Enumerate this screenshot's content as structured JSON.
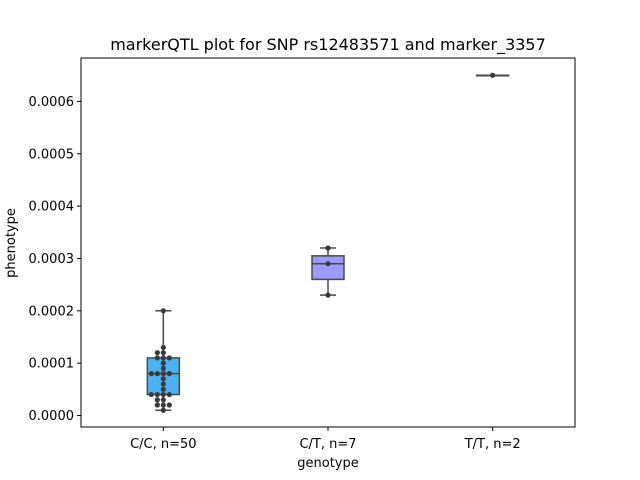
{
  "chart_data": {
    "type": "box",
    "title": "markerQTL plot for SNP rs12483571 and marker_3357",
    "xlabel": "genotype",
    "ylabel": "phenotype",
    "ylim": [
      -2.2e-05,
      0.000683
    ],
    "yticks": [
      0.0,
      0.0001,
      0.0002,
      0.0003,
      0.0004,
      0.0005,
      0.0006
    ],
    "ytick_labels": [
      "0.0000",
      "0.0001",
      "0.0002",
      "0.0003",
      "0.0004",
      "0.0005",
      "0.0006"
    ],
    "categories": [
      "C/C, n=50",
      "C/T, n=7",
      "T/T, n=2"
    ],
    "boxes": [
      {
        "category": "C/C, n=50",
        "color": "#4db3f0",
        "whislo": 1e-05,
        "q1": 4e-05,
        "med": 8e-05,
        "q3": 0.00011,
        "whishi": 0.0002
      },
      {
        "category": "C/T, n=7",
        "color": "#9d9bff",
        "whislo": 0.00023,
        "q1": 0.00026,
        "med": 0.00029,
        "q3": 0.000305,
        "whishi": 0.00032
      },
      {
        "category": "T/T, n=2",
        "color": "#f07bd8",
        "whislo": 0.00065,
        "q1": 0.00065,
        "med": 0.00065,
        "q3": 0.00065,
        "whishi": 0.00065
      }
    ],
    "points": [
      {
        "category": "C/C, n=50",
        "values": [
          0.0002,
          0.00013,
          0.00012,
          0.00012,
          0.00011,
          0.00011,
          0.00011,
          0.0001,
          9e-05,
          8e-05,
          8e-05,
          8e-05,
          8e-05,
          7e-05,
          6e-05,
          5e-05,
          4e-05,
          4e-05,
          4e-05,
          4e-05,
          3e-05,
          3e-05,
          2e-05,
          2e-05,
          2e-05,
          1e-05
        ]
      },
      {
        "category": "C/T, n=7",
        "values": [
          0.00032,
          0.00029,
          0.00023
        ]
      },
      {
        "category": "T/T, n=2",
        "values": [
          0.00065
        ]
      }
    ],
    "grid": false,
    "legend": "none",
    "point_color": "#3a3a3a",
    "line_color": "#4a4a4a"
  }
}
